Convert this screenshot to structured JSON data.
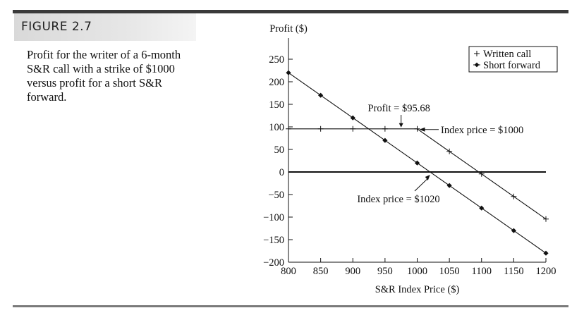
{
  "figure": {
    "label": "FIGURE 2.7",
    "caption": "Profit for the writer of a 6-month S&R call with a strike of $1000 versus profit for a short S&R forward."
  },
  "chart_data": {
    "type": "line",
    "ylabel": "Profit ($)",
    "xlabel": "S&R Index Price ($)",
    "xlim": [
      800,
      1200
    ],
    "ylim": [
      -200,
      260
    ],
    "xticks": [
      800,
      850,
      900,
      950,
      1000,
      1050,
      1100,
      1150,
      1200
    ],
    "yticks": [
      250,
      200,
      150,
      100,
      50,
      0,
      -50,
      -100,
      -150,
      -200
    ],
    "legend_position": "top-right",
    "series": [
      {
        "name": "Written call",
        "marker": "plus",
        "x": [
          800,
          850,
          900,
          950,
          1000,
          1050,
          1100,
          1150,
          1200
        ],
        "y": [
          95.68,
          95.68,
          95.68,
          95.68,
          95.68,
          45.68,
          -4.32,
          -54.32,
          -104.32
        ]
      },
      {
        "name": "Short forward",
        "marker": "diamond",
        "x": [
          800,
          850,
          900,
          950,
          1000,
          1050,
          1100,
          1150,
          1200
        ],
        "y": [
          220,
          170,
          120,
          70,
          20,
          -30,
          -80,
          -130,
          -180
        ]
      }
    ],
    "annotations": [
      {
        "text": "Profit = $95.68",
        "x": 975,
        "y": 95.68
      },
      {
        "text": "Index price = $1000",
        "x": 1000,
        "y": 95.68
      },
      {
        "text": "Index price = $1020",
        "x": 1020,
        "y": 0
      }
    ]
  }
}
